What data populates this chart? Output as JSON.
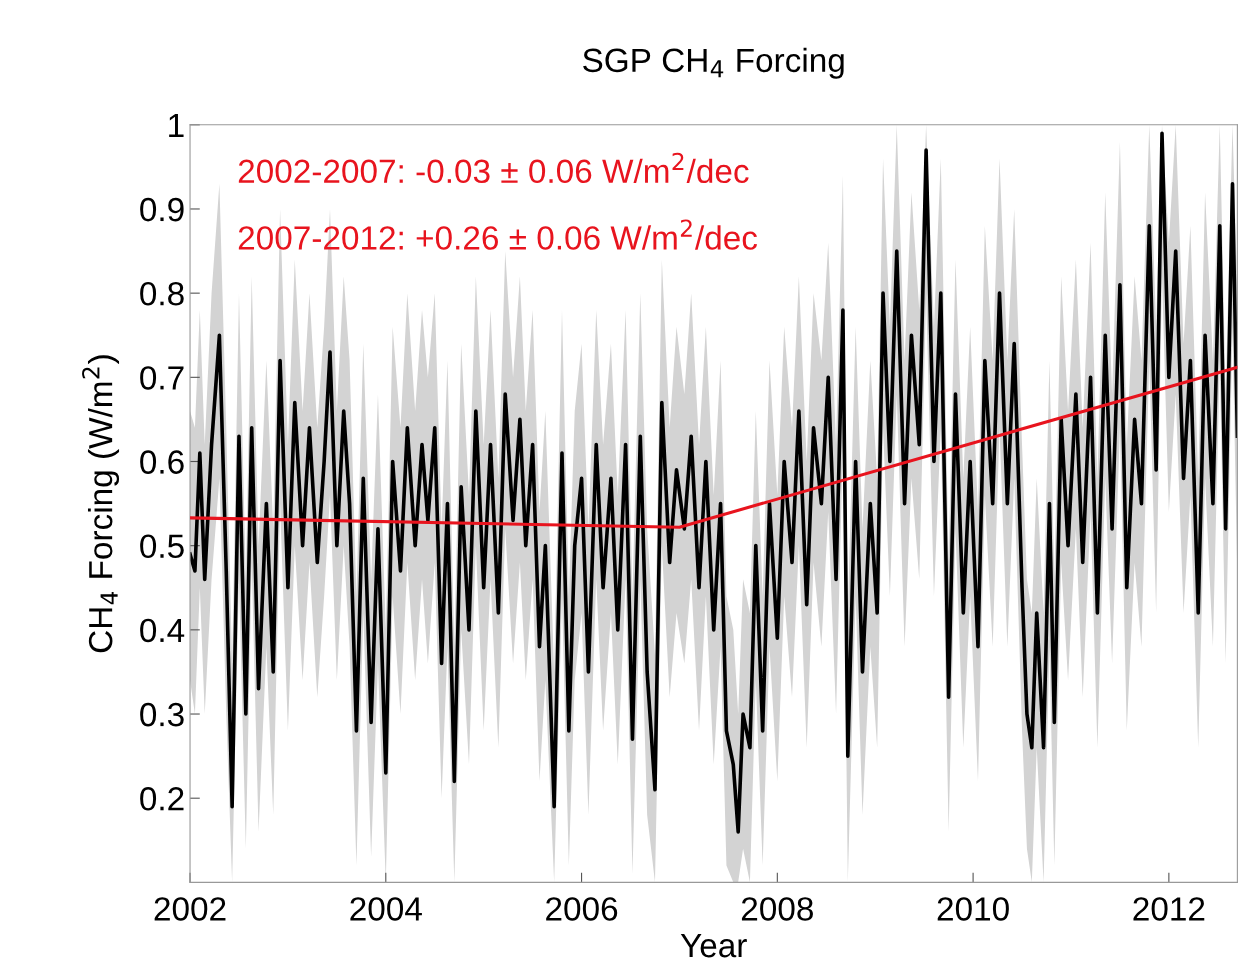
{
  "chart_data": {
    "type": "line",
    "title": "SGP CH$_{4}$ Forcing",
    "xlabel": "Year",
    "ylabel": "CH$_{4}$ Forcing (W/m$^{2}$)",
    "xlim": [
      2002,
      2012.7
    ],
    "xticks": [
      2002,
      2004,
      2006,
      2008,
      2010,
      2012
    ],
    "ylim": [
      0.1,
      1
    ],
    "yticks": [
      0.2,
      0.3,
      0.4,
      0.5,
      0.6,
      0.7,
      0.8,
      0.9,
      {
        "value": 1,
        "label": "1"
      }
    ],
    "grid": false,
    "legend": false,
    "line_style": "solid",
    "marker": "none",
    "annotations": [
      "2002-2007: -0.03 ± 0.06 W/m$^{2}$/dec",
      "2007-2012: +0.26 ± 0.06 W/m$^{2}$/dec"
    ],
    "series": [
      {
        "color": "#000000",
        "x": [
          2002.0,
          2002.05,
          2002.1,
          2002.15,
          2002.22,
          2002.3,
          2002.37,
          2002.43,
          2002.5,
          2002.57,
          2002.63,
          2002.7,
          2002.78,
          2002.85,
          2002.92,
          2003.0,
          2003.07,
          2003.15,
          2003.22,
          2003.3,
          2003.37,
          2003.43,
          2003.5,
          2003.57,
          2003.63,
          2003.7,
          2003.77,
          2003.85,
          2003.92,
          2004.0,
          2004.07,
          2004.15,
          2004.22,
          2004.3,
          2004.37,
          2004.43,
          2004.5,
          2004.57,
          2004.63,
          2004.7,
          2004.77,
          2004.85,
          2004.92,
          2005.0,
          2005.07,
          2005.15,
          2005.22,
          2005.3,
          2005.37,
          2005.43,
          2005.5,
          2005.57,
          2005.63,
          2005.72,
          2005.8,
          2005.87,
          2005.93,
          2006.0,
          2006.07,
          2006.15,
          2006.22,
          2006.3,
          2006.37,
          2006.45,
          2006.52,
          2006.6,
          2006.67,
          2006.75,
          2006.82,
          2006.9,
          2006.97,
          2007.05,
          2007.12,
          2007.2,
          2007.27,
          2007.35,
          2007.42,
          2007.48,
          2007.55,
          2007.6,
          2007.65,
          2007.72,
          2007.78,
          2007.85,
          2007.92,
          2008.0,
          2008.07,
          2008.15,
          2008.22,
          2008.3,
          2008.37,
          2008.45,
          2008.52,
          2008.6,
          2008.67,
          2008.72,
          2008.8,
          2008.87,
          2008.95,
          2009.02,
          2009.08,
          2009.15,
          2009.22,
          2009.3,
          2009.37,
          2009.45,
          2009.52,
          2009.6,
          2009.67,
          2009.75,
          2009.82,
          2009.9,
          2009.97,
          2010.05,
          2010.12,
          2010.2,
          2010.27,
          2010.35,
          2010.42,
          2010.5,
          2010.55,
          2010.6,
          2010.65,
          2010.72,
          2010.78,
          2010.83,
          2010.9,
          2010.97,
          2011.05,
          2011.12,
          2011.2,
          2011.27,
          2011.35,
          2011.42,
          2011.5,
          2011.57,
          2011.65,
          2011.72,
          2011.8,
          2011.87,
          2011.93,
          2012.0,
          2012.07,
          2012.15,
          2012.22,
          2012.3,
          2012.37,
          2012.45,
          2012.52,
          2012.58,
          2012.65,
          2012.7
        ],
        "values": [
          0.49,
          0.47,
          0.61,
          0.46,
          0.62,
          0.75,
          0.47,
          0.19,
          0.63,
          0.3,
          0.64,
          0.33,
          0.55,
          0.35,
          0.72,
          0.45,
          0.67,
          0.5,
          0.64,
          0.48,
          0.6,
          0.73,
          0.5,
          0.66,
          0.55,
          0.28,
          0.58,
          0.29,
          0.52,
          0.23,
          0.6,
          0.47,
          0.64,
          0.5,
          0.62,
          0.53,
          0.64,
          0.36,
          0.55,
          0.22,
          0.57,
          0.4,
          0.66,
          0.45,
          0.62,
          0.42,
          0.68,
          0.53,
          0.65,
          0.5,
          0.62,
          0.38,
          0.5,
          0.19,
          0.61,
          0.28,
          0.5,
          0.58,
          0.35,
          0.62,
          0.45,
          0.58,
          0.4,
          0.62,
          0.27,
          0.63,
          0.35,
          0.21,
          0.67,
          0.48,
          0.59,
          0.52,
          0.63,
          0.45,
          0.6,
          0.4,
          0.55,
          0.28,
          0.24,
          0.16,
          0.3,
          0.26,
          0.5,
          0.28,
          0.55,
          0.39,
          0.6,
          0.48,
          0.66,
          0.43,
          0.64,
          0.55,
          0.7,
          0.46,
          0.78,
          0.25,
          0.6,
          0.35,
          0.55,
          0.42,
          0.8,
          0.6,
          0.85,
          0.55,
          0.75,
          0.62,
          0.97,
          0.6,
          0.8,
          0.32,
          0.68,
          0.42,
          0.6,
          0.38,
          0.72,
          0.55,
          0.8,
          0.55,
          0.74,
          0.45,
          0.3,
          0.26,
          0.42,
          0.26,
          0.55,
          0.29,
          0.65,
          0.5,
          0.68,
          0.48,
          0.7,
          0.42,
          0.75,
          0.52,
          0.81,
          0.45,
          0.65,
          0.55,
          0.88,
          0.59,
          0.99,
          0.7,
          0.85,
          0.58,
          0.72,
          0.42,
          0.75,
          0.55,
          0.88,
          0.52,
          0.93,
          0.63
        ],
        "lower": [
          0.34,
          0.3,
          0.45,
          0.3,
          0.46,
          0.58,
          0.3,
          0.1,
          0.46,
          0.14,
          0.48,
          0.16,
          0.38,
          0.18,
          0.55,
          0.28,
          0.5,
          0.34,
          0.48,
          0.32,
          0.44,
          0.56,
          0.34,
          0.5,
          0.38,
          0.12,
          0.42,
          0.13,
          0.36,
          0.1,
          0.44,
          0.3,
          0.48,
          0.34,
          0.46,
          0.36,
          0.48,
          0.2,
          0.38,
          0.1,
          0.4,
          0.24,
          0.5,
          0.28,
          0.46,
          0.26,
          0.52,
          0.36,
          0.48,
          0.34,
          0.46,
          0.22,
          0.34,
          0.1,
          0.44,
          0.12,
          0.34,
          0.42,
          0.18,
          0.46,
          0.28,
          0.42,
          0.24,
          0.46,
          0.11,
          0.46,
          0.18,
          0.1,
          0.5,
          0.32,
          0.42,
          0.36,
          0.46,
          0.28,
          0.44,
          0.24,
          0.38,
          0.12,
          0.1,
          0.1,
          0.14,
          0.1,
          0.34,
          0.12,
          0.38,
          0.22,
          0.44,
          0.32,
          0.5,
          0.26,
          0.48,
          0.38,
          0.54,
          0.3,
          0.62,
          0.1,
          0.44,
          0.18,
          0.38,
          0.26,
          0.64,
          0.44,
          0.68,
          0.38,
          0.58,
          0.46,
          0.8,
          0.44,
          0.64,
          0.16,
          0.52,
          0.26,
          0.44,
          0.22,
          0.56,
          0.38,
          0.64,
          0.38,
          0.58,
          0.28,
          0.14,
          0.1,
          0.26,
          0.1,
          0.38,
          0.12,
          0.48,
          0.34,
          0.52,
          0.32,
          0.54,
          0.26,
          0.58,
          0.36,
          0.64,
          0.28,
          0.48,
          0.38,
          0.72,
          0.42,
          0.82,
          0.54,
          0.68,
          0.42,
          0.56,
          0.26,
          0.58,
          0.38,
          0.72,
          0.36,
          0.76,
          0.46
        ],
        "upper": [
          0.66,
          0.64,
          0.78,
          0.62,
          0.8,
          0.93,
          0.64,
          0.36,
          0.8,
          0.46,
          0.82,
          0.5,
          0.72,
          0.52,
          0.9,
          0.62,
          0.84,
          0.66,
          0.8,
          0.64,
          0.76,
          0.9,
          0.66,
          0.82,
          0.72,
          0.44,
          0.74,
          0.46,
          0.68,
          0.4,
          0.76,
          0.64,
          0.8,
          0.66,
          0.78,
          0.7,
          0.8,
          0.52,
          0.72,
          0.38,
          0.74,
          0.56,
          0.82,
          0.62,
          0.78,
          0.58,
          0.85,
          0.7,
          0.82,
          0.66,
          0.78,
          0.54,
          0.66,
          0.35,
          0.78,
          0.44,
          0.66,
          0.74,
          0.52,
          0.78,
          0.62,
          0.74,
          0.56,
          0.78,
          0.44,
          0.8,
          0.52,
          0.37,
          0.84,
          0.64,
          0.76,
          0.68,
          0.8,
          0.62,
          0.76,
          0.56,
          0.72,
          0.44,
          0.4,
          0.3,
          0.46,
          0.42,
          0.66,
          0.44,
          0.72,
          0.56,
          0.76,
          0.64,
          0.82,
          0.6,
          0.8,
          0.72,
          0.86,
          0.62,
          0.94,
          0.42,
          0.76,
          0.52,
          0.72,
          0.58,
          0.96,
          0.76,
          1.0,
          0.72,
          0.92,
          0.78,
          1.0,
          0.76,
          0.96,
          0.48,
          0.84,
          0.58,
          0.76,
          0.54,
          0.88,
          0.72,
          0.96,
          0.72,
          0.9,
          0.62,
          0.46,
          0.42,
          0.58,
          0.42,
          0.72,
          0.46,
          0.82,
          0.66,
          0.84,
          0.64,
          0.86,
          0.58,
          0.92,
          0.68,
          0.98,
          0.62,
          0.82,
          0.72,
          1.0,
          0.76,
          1.0,
          0.86,
          1.0,
          0.74,
          0.88,
          0.58,
          0.92,
          0.72,
          1.0,
          0.68,
          1.0,
          0.8
        ]
      },
      {
        "color": "#e8141e",
        "x": [
          2002,
          2007,
          2012.7
        ],
        "values": [
          0.533,
          0.522,
          0.712
        ]
      }
    ]
  }
}
